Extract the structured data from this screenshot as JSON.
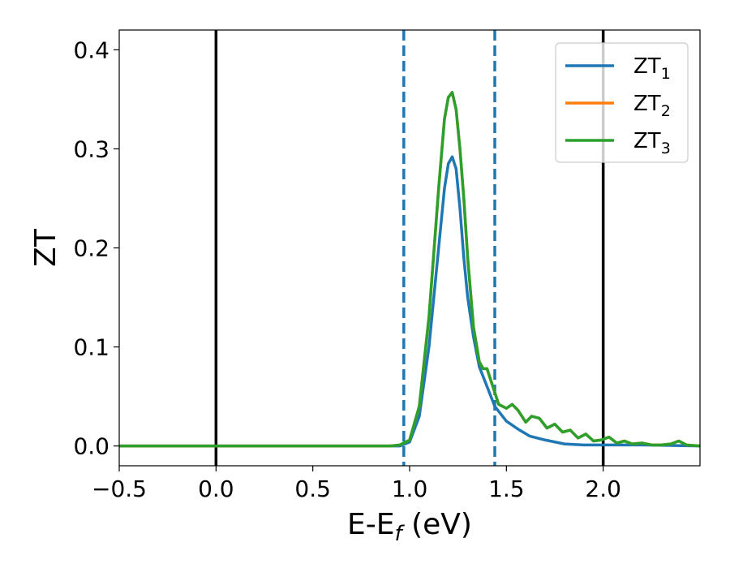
{
  "chart_data": {
    "type": "line",
    "xlabel": "E-E",
    "xlabel_sub": "f",
    "xlabel_unit": " (eV)",
    "ylabel": "ZT",
    "xlim": [
      -0.5,
      2.5
    ],
    "ylim": [
      -0.02,
      0.42
    ],
    "xticks": [
      -0.5,
      0.0,
      0.5,
      1.0,
      1.5,
      2.0
    ],
    "xtick_labels": [
      "−0.5",
      "0.0",
      "0.5",
      "1.0",
      "1.5",
      "2.0"
    ],
    "yticks": [
      0.0,
      0.1,
      0.2,
      0.3,
      0.4
    ],
    "ytick_labels": [
      "0.0",
      "0.1",
      "0.2",
      "0.3",
      "0.4"
    ],
    "grid": false,
    "legend_position": "top-right",
    "vlines": [
      {
        "x": 0.0,
        "style": "solid",
        "color": "#000000"
      },
      {
        "x": 0.97,
        "style": "dashed",
        "color": "#1f77b4"
      },
      {
        "x": 1.44,
        "style": "dashed",
        "color": "#1f77b4"
      },
      {
        "x": 2.0,
        "style": "solid",
        "color": "#000000"
      }
    ],
    "series": [
      {
        "name": "ZT",
        "subscript": "1",
        "color": "#1f77b4",
        "x": [
          -0.5,
          0.9,
          0.95,
          1.0,
          1.05,
          1.1,
          1.15,
          1.18,
          1.2,
          1.22,
          1.24,
          1.26,
          1.28,
          1.3,
          1.33,
          1.36,
          1.4,
          1.44,
          1.5,
          1.56,
          1.62,
          1.7,
          1.8,
          1.9,
          2.0,
          2.2,
          2.5
        ],
        "y": [
          0.0,
          0.0,
          0.0,
          0.004,
          0.03,
          0.1,
          0.2,
          0.26,
          0.285,
          0.292,
          0.28,
          0.24,
          0.19,
          0.15,
          0.11,
          0.08,
          0.06,
          0.04,
          0.025,
          0.017,
          0.01,
          0.006,
          0.002,
          0.001,
          0.001,
          0.001,
          0.0
        ]
      },
      {
        "name": "ZT",
        "subscript": "2",
        "color": "#ff7f0e",
        "x": [
          -0.5,
          0.9,
          0.95,
          1.0,
          1.05,
          1.1,
          1.15,
          1.18,
          1.2,
          1.22,
          1.24,
          1.26,
          1.28,
          1.3,
          1.33,
          1.36,
          1.38,
          1.4,
          1.43,
          1.46,
          1.5,
          1.53,
          1.56,
          1.6,
          1.63,
          1.67,
          1.71,
          1.75,
          1.79,
          1.83,
          1.87,
          1.91,
          1.95,
          1.99,
          2.03,
          2.07,
          2.11,
          2.15,
          2.2,
          2.25,
          2.3,
          2.35,
          2.39,
          2.43,
          2.5
        ],
        "y": [
          0.0,
          0.0,
          0.001,
          0.006,
          0.04,
          0.13,
          0.26,
          0.33,
          0.352,
          0.357,
          0.34,
          0.3,
          0.25,
          0.19,
          0.12,
          0.085,
          0.078,
          0.078,
          0.06,
          0.042,
          0.038,
          0.042,
          0.036,
          0.024,
          0.03,
          0.028,
          0.018,
          0.022,
          0.014,
          0.016,
          0.008,
          0.012,
          0.005,
          0.006,
          0.009,
          0.003,
          0.005,
          0.002,
          0.003,
          0.001,
          0.001,
          0.002,
          0.005,
          0.001,
          0.0
        ]
      },
      {
        "name": "ZT",
        "subscript": "3",
        "color": "#2ca02c",
        "x": [
          -0.5,
          0.9,
          0.95,
          1.0,
          1.05,
          1.1,
          1.15,
          1.18,
          1.2,
          1.22,
          1.24,
          1.26,
          1.28,
          1.3,
          1.33,
          1.36,
          1.38,
          1.4,
          1.43,
          1.46,
          1.5,
          1.53,
          1.56,
          1.6,
          1.63,
          1.67,
          1.71,
          1.75,
          1.79,
          1.83,
          1.87,
          1.91,
          1.95,
          1.99,
          2.03,
          2.07,
          2.11,
          2.15,
          2.2,
          2.25,
          2.3,
          2.35,
          2.39,
          2.43,
          2.5
        ],
        "y": [
          0.0,
          0.0,
          0.001,
          0.006,
          0.04,
          0.13,
          0.26,
          0.33,
          0.352,
          0.357,
          0.34,
          0.3,
          0.25,
          0.19,
          0.12,
          0.085,
          0.078,
          0.078,
          0.06,
          0.042,
          0.038,
          0.042,
          0.036,
          0.024,
          0.03,
          0.028,
          0.018,
          0.022,
          0.014,
          0.016,
          0.008,
          0.012,
          0.005,
          0.006,
          0.009,
          0.003,
          0.005,
          0.002,
          0.003,
          0.001,
          0.001,
          0.002,
          0.005,
          0.001,
          0.0
        ]
      }
    ]
  }
}
